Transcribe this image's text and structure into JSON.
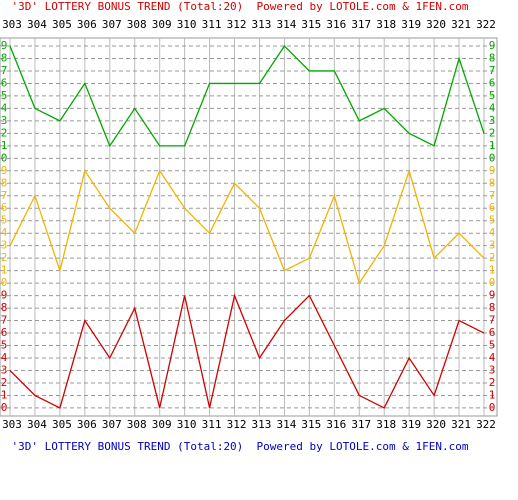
{
  "chart_data": {
    "type": "line",
    "title": "'3D' LOTTERY BONUS TREND (Total:20)  Powered by LOTOLE.com & 1FEN.com",
    "categories": [
      "303",
      "304",
      "305",
      "306",
      "307",
      "308",
      "309",
      "310",
      "311",
      "312",
      "313",
      "314",
      "315",
      "316",
      "317",
      "318",
      "319",
      "320",
      "321",
      "322"
    ],
    "series": [
      {
        "color": "#00a800",
        "values": [
          9,
          4,
          3,
          6,
          1,
          4,
          1,
          1,
          6,
          6,
          6,
          9,
          7,
          7,
          3,
          4,
          2,
          1,
          8,
          2
        ]
      },
      {
        "color": "#f0b400",
        "values": [
          3,
          7,
          1,
          9,
          6,
          4,
          9,
          6,
          4,
          8,
          6,
          1,
          2,
          7,
          0,
          3,
          9,
          2,
          4,
          2
        ]
      },
      {
        "color": "#d00000",
        "values": [
          3,
          1,
          0,
          7,
          4,
          8,
          0,
          9,
          0,
          9,
          4,
          7,
          9,
          5,
          1,
          0,
          4,
          1,
          7,
          6
        ]
      }
    ],
    "ylim": [
      0,
      9
    ],
    "yticks": [
      0,
      1,
      2,
      3,
      4,
      5,
      6,
      7,
      8,
      9
    ],
    "grid": true,
    "title_colors": [
      "#d00000",
      "#0000c0"
    ]
  }
}
